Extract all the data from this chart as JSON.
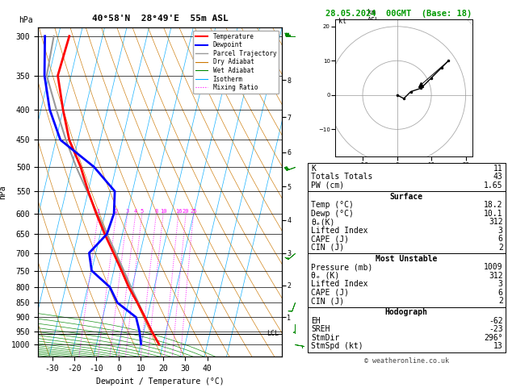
{
  "title_left": "40°58'N  28°49'E  55m ASL",
  "title_right": "28.05.2024  00GMT  (Base: 18)",
  "xlabel": "Dewpoint / Temperature (°C)",
  "ylabel_left": "hPa",
  "temp_color": "#ff0000",
  "dewp_color": "#0000ff",
  "parcel_color": "#999999",
  "dry_adiabat_color": "#cc7700",
  "wet_adiabat_color": "#008800",
  "isotherm_color": "#00aaff",
  "mixing_ratio_color": "#ff00ff",
  "background_color": "#ffffff",
  "p_ticks": [
    300,
    350,
    400,
    450,
    500,
    550,
    600,
    650,
    700,
    750,
    800,
    850,
    900,
    950,
    1000
  ],
  "x_ticks": [
    -30,
    -20,
    -10,
    0,
    10,
    20,
    30,
    40
  ],
  "xlim": [
    -35,
    40
  ],
  "pmin": 290,
  "pmax": 1050,
  "skew_factor": 35.0,
  "mixing_ratio_values": [
    1,
    2,
    3,
    4,
    5,
    8,
    10,
    16,
    20,
    25
  ],
  "km_levels": {
    "1": 900,
    "2": 795,
    "3": 700,
    "4": 615,
    "5": 540,
    "6": 472,
    "7": 412,
    "8": 356
  },
  "lcl_label": "LCL",
  "lcl_pressure": 960,
  "temperature_data": {
    "pressure": [
      1000,
      950,
      900,
      850,
      800,
      750,
      700,
      650,
      600,
      550,
      500,
      450,
      400,
      350,
      300
    ],
    "temperature": [
      18.2,
      13.5,
      9.0,
      4.0,
      -1.5,
      -6.5,
      -12.0,
      -18.0,
      -24.0,
      -30.0,
      -36.0,
      -44.0,
      -50.0,
      -56.0,
      -55.0
    ]
  },
  "dewpoint_data": {
    "pressure": [
      1000,
      950,
      900,
      850,
      800,
      750,
      700,
      650,
      600,
      550,
      500,
      450,
      400,
      350,
      300
    ],
    "dewpoint": [
      10.1,
      8.0,
      5.0,
      -5.0,
      -10.0,
      -20.0,
      -23.0,
      -17.0,
      -16.0,
      -18.0,
      -30.0,
      -48.0,
      -56.0,
      -62.0,
      -66.0
    ]
  },
  "parcel_data": {
    "pressure": [
      1000,
      950,
      900,
      850,
      800,
      750,
      700,
      650,
      600,
      550,
      500,
      450,
      400,
      350,
      300
    ],
    "temperature": [
      18.2,
      13.5,
      9.0,
      4.5,
      -0.5,
      -5.5,
      -11.0,
      -17.0,
      -23.5,
      -30.5,
      -38.0,
      -45.5,
      -53.0,
      -61.0,
      -62.0
    ]
  },
  "stats": {
    "K": 11,
    "totals_totals": 43,
    "PW_cm": 1.65,
    "surface_temp": "18.2",
    "surface_dewp": "10.1",
    "theta_e_K": 312,
    "lifted_index": 3,
    "CAPE_J": 6,
    "CIN_J": 2,
    "MU_pressure_mb": 1009,
    "MU_theta_e_K": 312,
    "MU_lifted_index": 3,
    "MU_CAPE_J": 6,
    "MU_CIN_J": 2,
    "EH": -62,
    "SREH": -23,
    "StmDir": 296,
    "StmSpd_kt": 13
  },
  "hodo_u": [
    0,
    2,
    4,
    7,
    10,
    13,
    15
  ],
  "hodo_v": [
    0,
    -1,
    1,
    2,
    5,
    8,
    10
  ],
  "storm_u": 7,
  "storm_v": 3,
  "wind_barbs": [
    {
      "pressure": 300,
      "wspd": 45,
      "wdir": 270
    },
    {
      "pressure": 500,
      "wspd": 30,
      "wdir": 250
    },
    {
      "pressure": 700,
      "wspd": 15,
      "wdir": 230
    },
    {
      "pressure": 850,
      "wspd": 10,
      "wdir": 200
    },
    {
      "pressure": 925,
      "wspd": 5,
      "wdir": 180
    },
    {
      "pressure": 1000,
      "wspd": 5,
      "wdir": 100
    }
  ],
  "watermark": "© weatheronline.co.uk"
}
